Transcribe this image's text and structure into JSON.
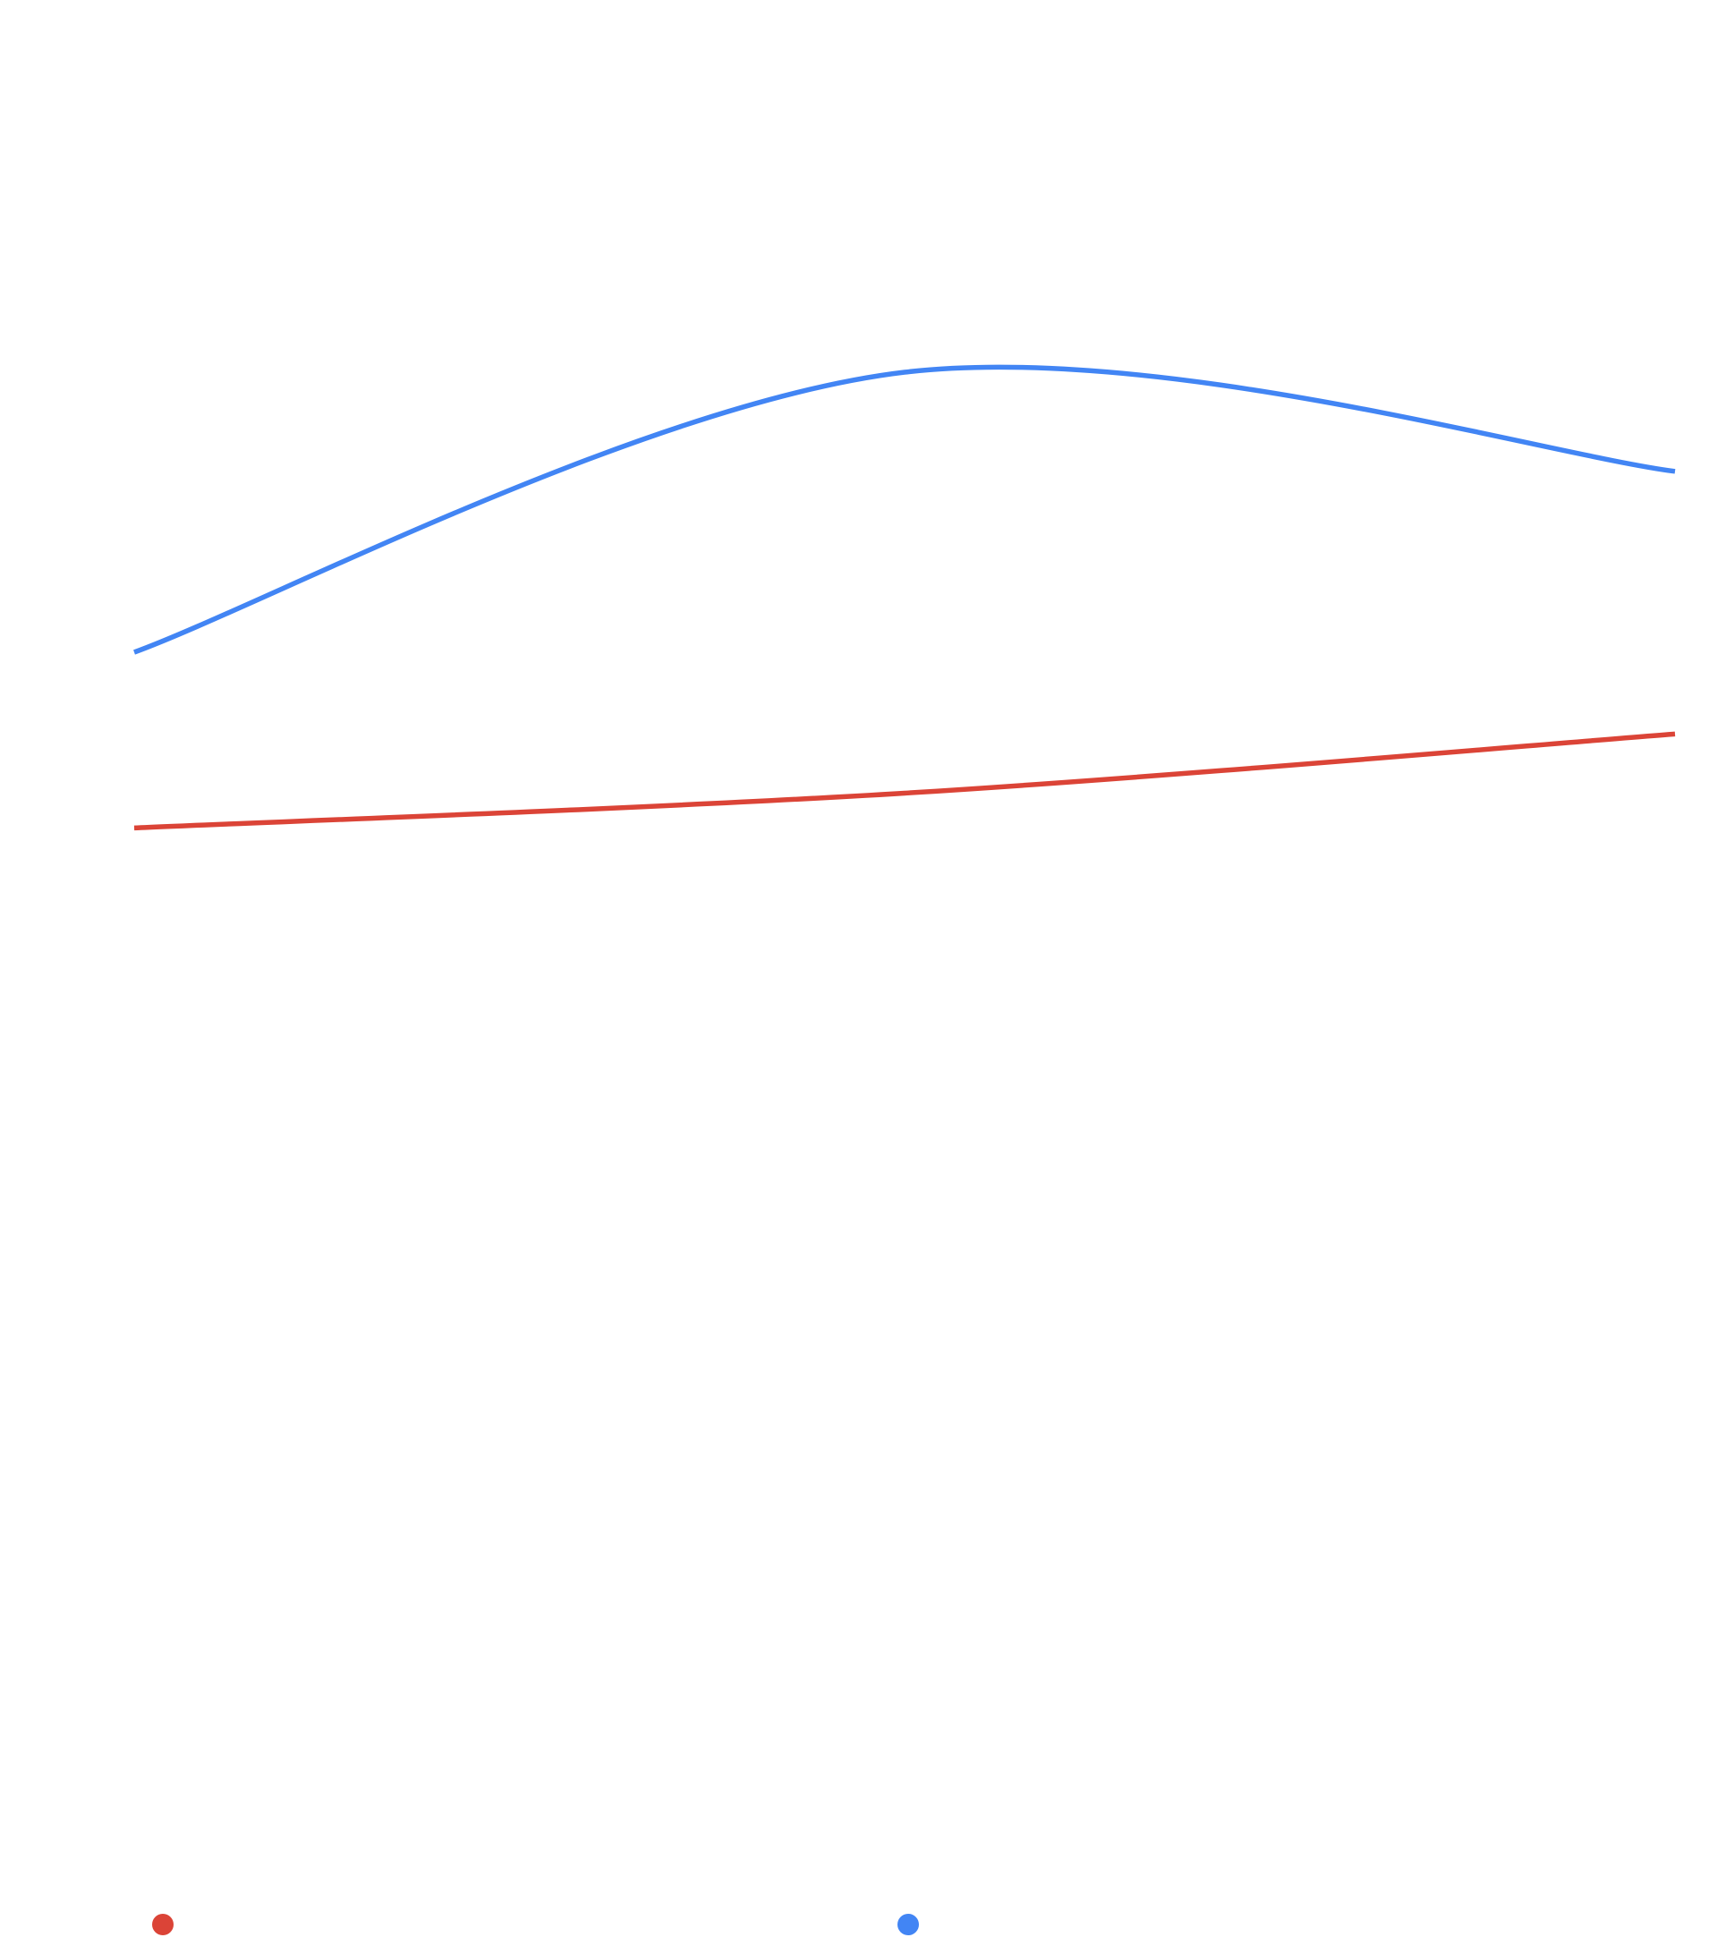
{
  "chart_data": {
    "type": "line",
    "curve": "smooth",
    "categories": [
      null,
      null,
      null
    ],
    "ylim": [
      0,
      100
    ],
    "series": [
      {
        "color": "#db4437",
        "values": [
          52.4,
          54.4,
          57.8
        ]
      },
      {
        "color": "#4285f4",
        "values": [
          62.5,
          78.6,
          72.9
        ]
      }
    ]
  }
}
